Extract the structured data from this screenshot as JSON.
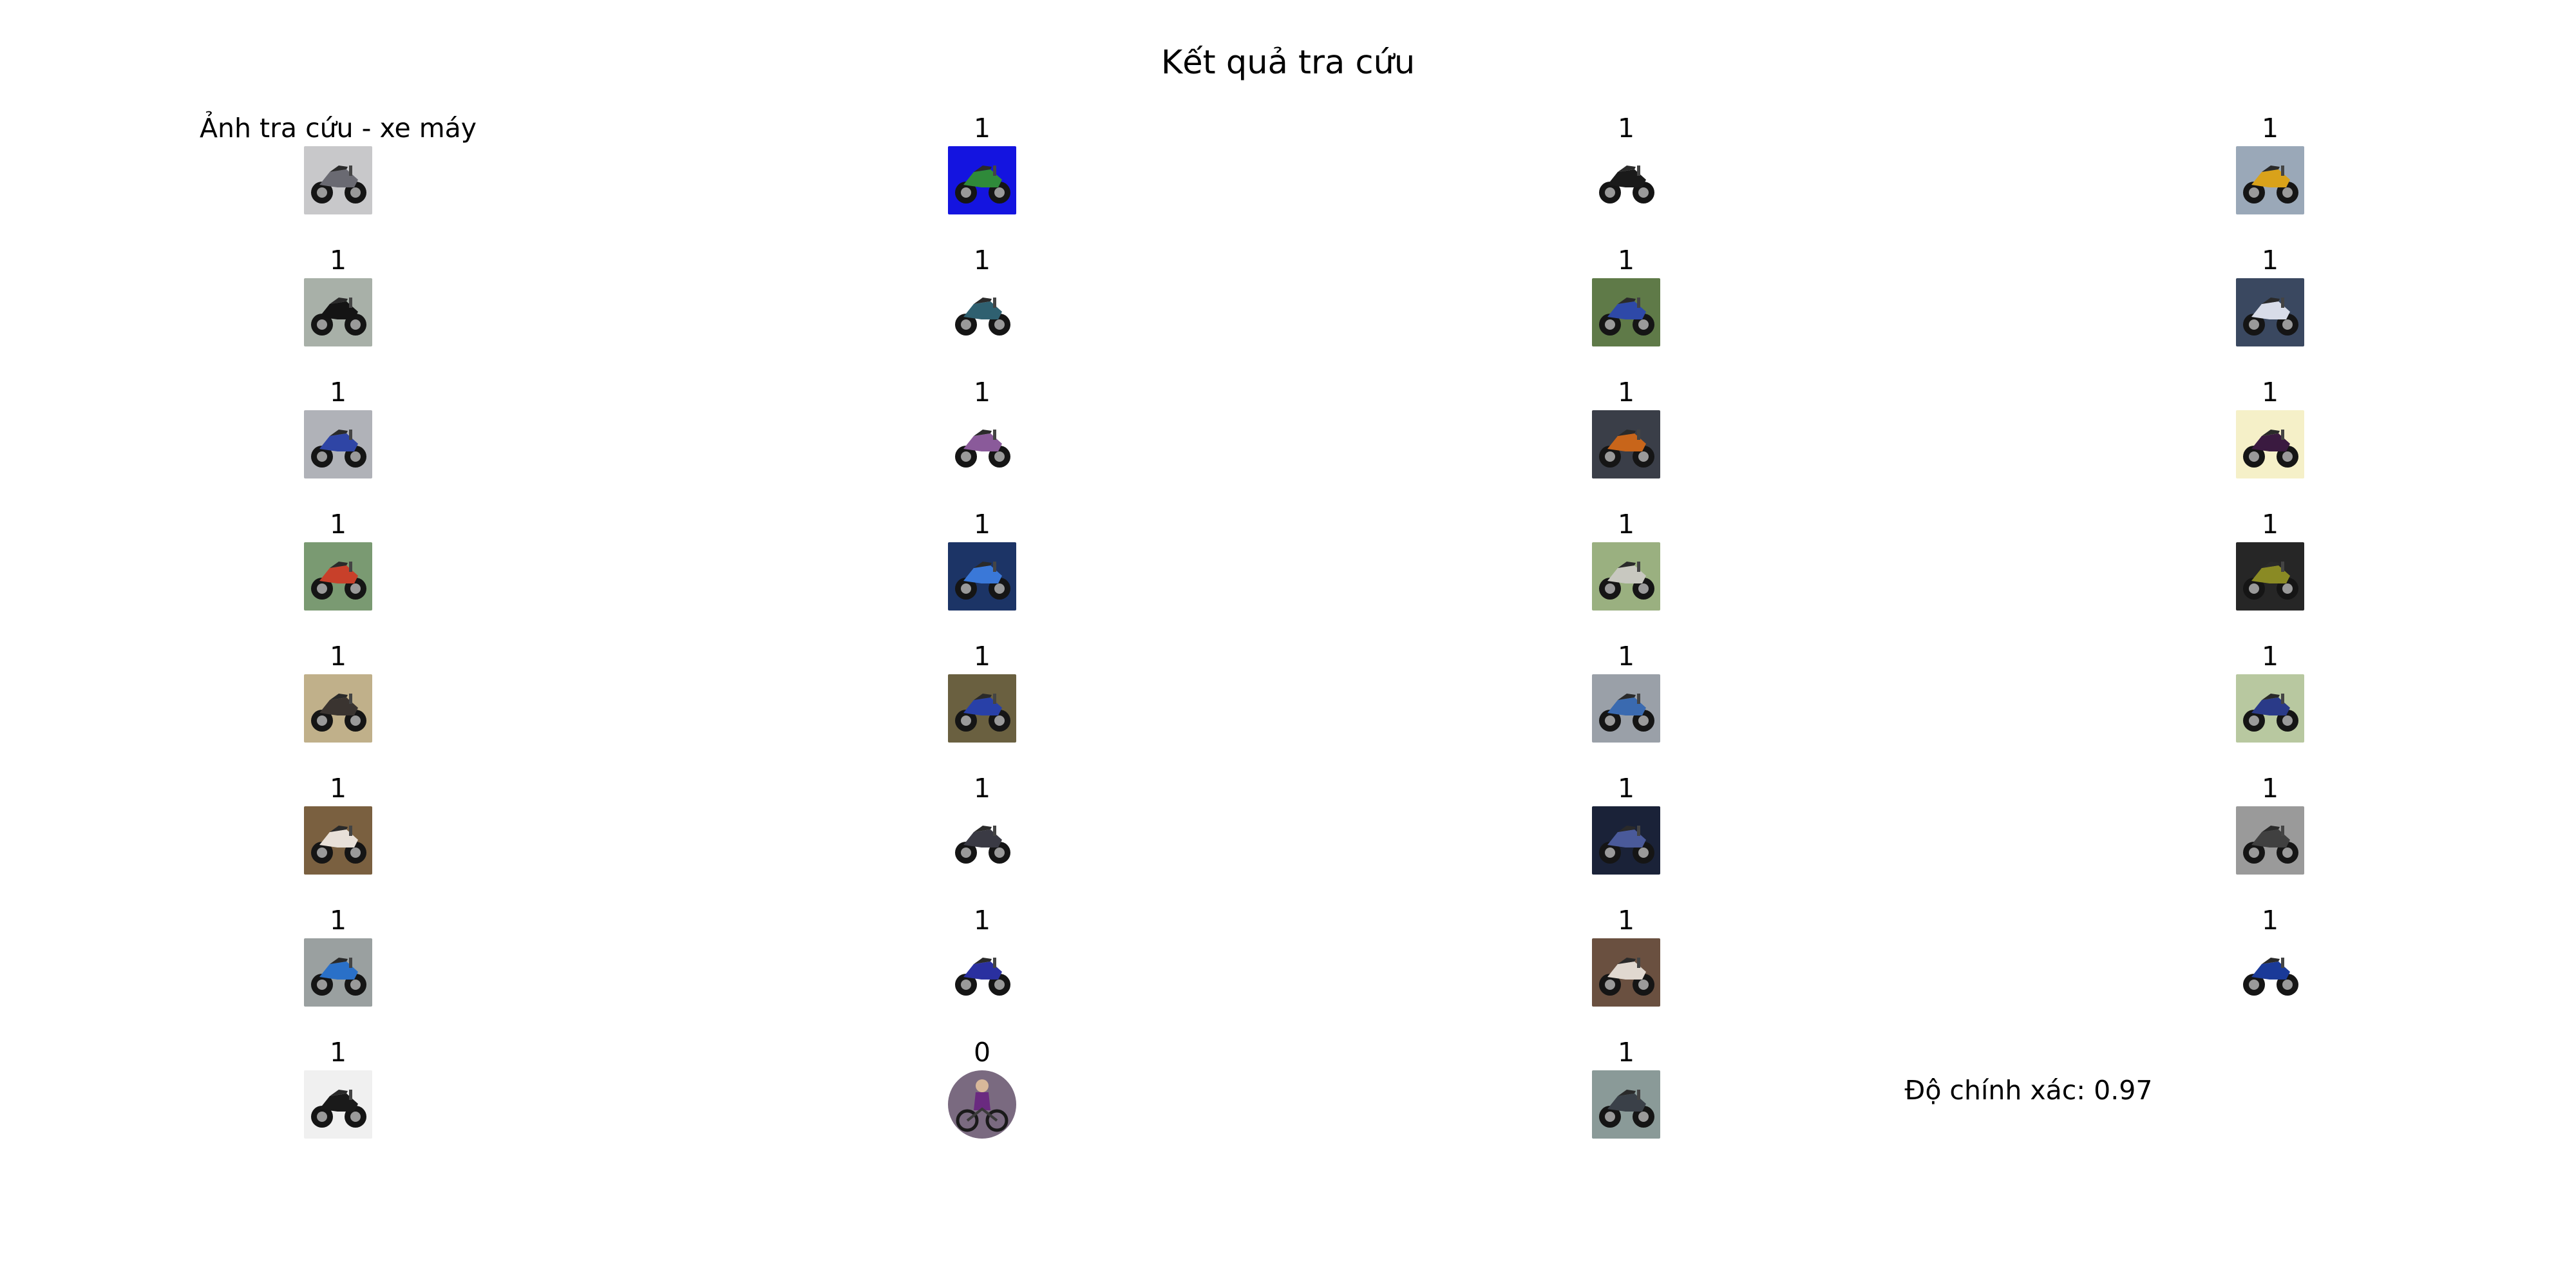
{
  "title": "Kết quả tra cứu",
  "query": {
    "label": "Ảnh tra cứu - xe máy",
    "icon": "motorcycle-photo-icon",
    "bg": "#c8c8ca",
    "body": "#6a6a72"
  },
  "results": [
    {
      "label": "1",
      "icon": "motorcycle-photo-icon",
      "bg": "#1414e0",
      "body": "#2f8a3a"
    },
    {
      "label": "1",
      "icon": "motorcycle-photo-icon",
      "bg": "#ffffff",
      "body": "#1a1a1a"
    },
    {
      "label": "1",
      "icon": "motorcycle-photo-icon",
      "bg": "#9aa8b8",
      "body": "#d9a21a"
    },
    {
      "label": "1",
      "icon": "motorcycle-photo-icon",
      "bg": "#a8b0a8",
      "body": "#141414"
    },
    {
      "label": "1",
      "icon": "motorcycle-photo-icon",
      "bg": "#ffffff",
      "body": "#2f6070"
    },
    {
      "label": "1",
      "icon": "motorcycle-photo-icon",
      "bg": "#5f7a48",
      "body": "#2e49a8"
    },
    {
      "label": "1",
      "icon": "motorcycle-photo-icon",
      "bg": "#3a4860",
      "body": "#d8dce8"
    },
    {
      "label": "1",
      "icon": "motorcycle-photo-icon",
      "bg": "#b0b2b8",
      "body": "#2f45a5"
    },
    {
      "label": "1",
      "icon": "motorcycle-photo-icon",
      "bg": "#ffffff",
      "body": "#8a5a9a"
    },
    {
      "label": "1",
      "icon": "motorcycle-photo-icon",
      "bg": "#3a3e48",
      "body": "#c8651a"
    },
    {
      "label": "1",
      "icon": "motorcycle-photo-icon",
      "bg": "#f5f0c8",
      "body": "#3a1a40"
    },
    {
      "label": "1",
      "icon": "motorcycle-photo-icon",
      "bg": "#7a9a72",
      "body": "#c8402a"
    },
    {
      "label": "1",
      "icon": "motorcycle-photo-icon",
      "bg": "#1c3466",
      "body": "#3a78d8"
    },
    {
      "label": "1",
      "icon": "motorcycle-photo-icon",
      "bg": "#9ab080",
      "body": "#c8c8c0"
    },
    {
      "label": "1",
      "icon": "motorcycle-photo-icon",
      "bg": "#262626",
      "body": "#8a8a24"
    },
    {
      "label": "1",
      "icon": "motorcycle-photo-icon",
      "bg": "#c0b08a",
      "body": "#3a3430"
    },
    {
      "label": "1",
      "icon": "motorcycle-photo-icon",
      "bg": "#6a6040",
      "body": "#2840a8"
    },
    {
      "label": "1",
      "icon": "motorcycle-photo-icon",
      "bg": "#9aa0a8",
      "body": "#3a6ab0"
    },
    {
      "label": "1",
      "icon": "motorcycle-photo-icon",
      "bg": "#b8c8a0",
      "body": "#2a3a88"
    },
    {
      "label": "1",
      "icon": "motorcycle-photo-icon",
      "bg": "#7a6040",
      "body": "#e8e0d8"
    },
    {
      "label": "1",
      "icon": "motorcycle-photo-icon",
      "bg": "#ffffff",
      "body": "#3a3a44"
    },
    {
      "label": "1",
      "icon": "motorcycle-photo-icon",
      "bg": "#1a2238",
      "body": "#4a5a9a"
    },
    {
      "label": "1",
      "icon": "motorcycle-photo-icon",
      "bg": "#9a9a9a",
      "body": "#404040"
    },
    {
      "label": "1",
      "icon": "motorcycle-photo-icon",
      "bg": "#9aa0a0",
      "body": "#2a70c8"
    },
    {
      "label": "1",
      "icon": "motorcycle-photo-icon",
      "bg": "#ffffff",
      "body": "#2a30a0"
    },
    {
      "label": "1",
      "icon": "motorcycle-photo-icon",
      "bg": "#6a5040",
      "body": "#e0d8d0"
    },
    {
      "label": "1",
      "icon": "motorcycle-photo-icon",
      "bg": "#ffffff",
      "body": "#1a3a98"
    },
    {
      "label": "1",
      "icon": "motorcycle-photo-icon",
      "bg": "#f0f0f0",
      "body": "#1a1a1a"
    },
    {
      "label": "0",
      "icon": "person-bicycle-photo-icon",
      "bg": "#7a6a80",
      "body": "#6a2a80"
    },
    {
      "label": "1",
      "icon": "motorcycle-photo-icon",
      "bg": "#8a9a98",
      "body": "#3a4048"
    }
  ],
  "accuracy": "Độ chính xác: 0.97"
}
